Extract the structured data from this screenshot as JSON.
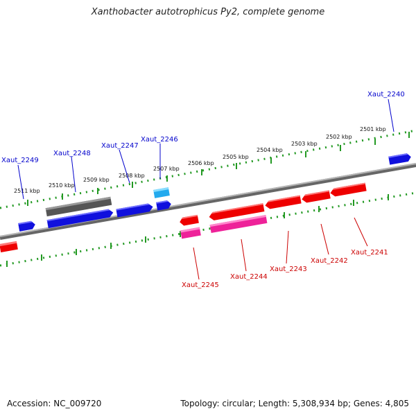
{
  "title": "Xanthobacter autotrophicus Py2, complete genome",
  "footer": {
    "accession": "Accession: NC_009720",
    "summary": "Topology: circular; Length: 5,308,934 bp; Genes: 4,805"
  },
  "colors": {
    "forward_gene": "#1010dd",
    "reverse_gene": "#ee0000",
    "rna_gene": "#ee2299",
    "pseudo_gene": "#555555",
    "trna_gene": "#22aaee",
    "backbone": "#888888",
    "scale_ticks": "#229922",
    "forward_label": "#0000cc",
    "reverse_label": "#cc0000"
  },
  "scale": {
    "unit": "kbp",
    "labels": [
      "2511 kbp",
      "2510 kbp",
      "2509 kbp",
      "2508 kbp",
      "2507 kbp",
      "2506 kbp",
      "2505 kbp",
      "2504 kbp",
      "2503 kbp",
      "2502 kbp",
      "2501 kbp"
    ]
  },
  "forward_labels": [
    "Xaut_2249",
    "Xaut_2248",
    "Xaut_2247",
    "Xaut_2246",
    "Xaut_2240"
  ],
  "reverse_labels": [
    "Xaut_2245",
    "Xaut_2244",
    "Xaut_2243",
    "Xaut_2242",
    "Xaut_2241"
  ]
}
